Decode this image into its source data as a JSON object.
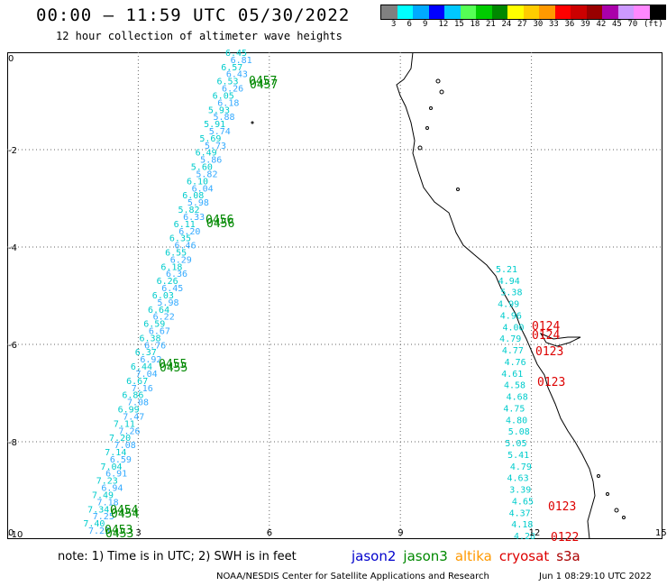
{
  "header": {
    "title": "00:00 – 11:59 UTC 05/30/2022",
    "subtitle": "12 hour collection of altimeter wave heights"
  },
  "legend": {
    "colors": [
      "#808080",
      "#00ffff",
      "#00aaff",
      "#0000ff",
      "#00c8ff",
      "#55ff55",
      "#00cc00",
      "#008800",
      "#ffff00",
      "#ffcc00",
      "#ff9900",
      "#ff0000",
      "#cc0000",
      "#990000",
      "#aa00aa",
      "#cc99ff",
      "#ff88ff",
      "#000000"
    ],
    "labels": [
      "3",
      "6",
      "9",
      "12",
      "15",
      "18",
      "21",
      "24",
      "27",
      "30",
      "33",
      "36",
      "39",
      "42",
      "45",
      "70",
      "(ft)"
    ]
  },
  "axes": {
    "x_ticks": [
      "0",
      "3",
      "6",
      "9",
      "12",
      "15"
    ],
    "y_ticks": [
      "0",
      "-2",
      "-4",
      "-6",
      "-8",
      "-10"
    ]
  },
  "tracks": {
    "cyan_values": [
      "6.45",
      "6.81",
      "6.57",
      "6.43",
      "6.53",
      "6.26",
      "6.05",
      "6.18",
      "5.93",
      "5.88",
      "5.91",
      "5.74",
      "5.69",
      "5.73",
      "6.49",
      "5.86",
      "5.60",
      "5.82",
      "6.10",
      "6.04",
      "6.08",
      "5.98",
      "5.82",
      "6.33",
      "6.11",
      "6.20",
      "6.35",
      "6.46",
      "6.55",
      "6.29",
      "6.18",
      "6.36",
      "6.26",
      "6.45",
      "6.03",
      "5.98",
      "6.64",
      "6.22",
      "6.59",
      "6.67",
      "6.38",
      "6.76",
      "6.37",
      "6.92",
      "6.44",
      "7.04",
      "6.67",
      "7.16",
      "6.86",
      "7.08",
      "6.99",
      "7.47",
      "7.11",
      "7.26",
      "7.20",
      "7.08",
      "7.14",
      "6.59",
      "7.04",
      "6.91",
      "7.23",
      "6.94",
      "7.49",
      "7.18",
      "7.34",
      "7.25",
      "7.40",
      "7.25"
    ],
    "green_labels": [
      "0457",
      "0456",
      "0455",
      "0454",
      "0453"
    ],
    "east_values": [
      "5.21",
      "4.94",
      "5.38",
      "4.99",
      "4.96",
      "4.00",
      "4.79",
      "4.77",
      "4.76",
      "4.61",
      "4.58",
      "4.68",
      "4.75",
      "4.80",
      "5.08",
      "5.05",
      "5.41",
      "4.79",
      "4.63",
      "3.39",
      "4.65",
      "4.37",
      "4.18",
      "4.28"
    ],
    "red_labels": [
      "0124",
      "0124",
      "0123",
      "0123",
      "0123",
      "0122"
    ]
  },
  "notes": {
    "note": "note:  1) Time is in UTC;  2) SWH is in feet",
    "satellites": [
      {
        "name": "jason2",
        "color": "#0000cc"
      },
      {
        "name": "jason3",
        "color": "#008800"
      },
      {
        "name": "altika",
        "color": "#ff9900"
      },
      {
        "name": "cryosat",
        "color": "#dd0000"
      },
      {
        "name": "s3a",
        "color": "#aa0000"
      }
    ],
    "credits": "NOAA/NESDIS Center for Satellite Applications and Research",
    "timestamp": "Jun  1 08:29:10 UTC 2022"
  }
}
